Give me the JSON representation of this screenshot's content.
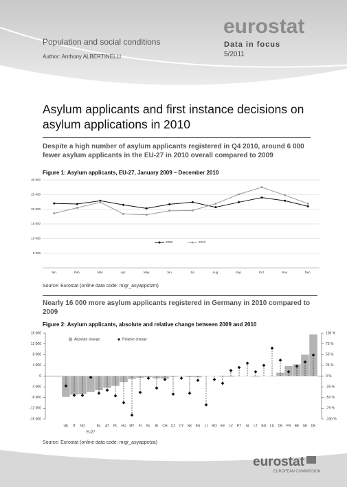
{
  "header": {
    "theme": "Population and social conditions",
    "author": "Author:   Anthony ALBERTINELLI",
    "brand": "eurostat",
    "series": "Data in focus",
    "issue": "5/2011"
  },
  "title": "Asylum applicants and first instance decisions on asylum applications in 2010",
  "subtitle": "Despite a high number of asylum applicants registered in Q4 2010, around 6 000 fewer asylum applicants in the EU-27 in 2010 overall compared to 2009",
  "heading2": "Nearly 16 000 more asylum applicants registered in Germany in 2010 compared to 2009",
  "footer": {
    "brand": "eurostat",
    "org": "EUROPEAN COMMISSION"
  },
  "chart_data": [
    {
      "type": "line",
      "title": "Figure 1: Asylum applicants, EU-27, January 2009 – December 2010",
      "source": "Source: Eurostat (online data code: migr_asyappctzm)",
      "categories": [
        "Jan.",
        "Feb.",
        "Mar.",
        "Apr.",
        "May",
        "Jun.",
        "Jul.",
        "Aug.",
        "Sep.",
        "Oct.",
        "Nov.",
        "Dec."
      ],
      "series": [
        {
          "name": "2009",
          "color": "#111111",
          "values": [
            22000,
            21800,
            22900,
            21500,
            20300,
            21700,
            22400,
            20700,
            22400,
            24000,
            22900,
            21000
          ]
        },
        {
          "name": "2010",
          "color": "#999999",
          "values": [
            18600,
            20500,
            22400,
            18400,
            18100,
            19500,
            19600,
            21900,
            25100,
            27500,
            24800,
            21900
          ]
        }
      ],
      "ylim": [
        0,
        30000
      ],
      "yticks": [
        {
          "value": 5000,
          "label": "5 000"
        },
        {
          "value": 10000,
          "label": "10 000"
        },
        {
          "value": 15000,
          "label": "15 000"
        },
        {
          "value": 20000,
          "label": "20 000"
        },
        {
          "value": 25000,
          "label": "25 000"
        },
        {
          "value": 30000,
          "label": "30 000"
        }
      ],
      "grid": true
    },
    {
      "type": "bar",
      "title": "Figure 2: Asylum applicants, absolute and relative change between 2009 and 2010",
      "source": "Source: Eurostat (online data code: migr_asyappctza)",
      "categories": [
        "UK",
        "IT",
        "NO",
        "EU27",
        "EL",
        "AT",
        "PL",
        "HU",
        "MT",
        "FI",
        "NL",
        "IE",
        "CH",
        "CZ",
        "CY",
        "SK",
        "ES",
        "LI",
        "RO",
        "EE",
        "LV",
        "PT",
        "SI",
        "LT",
        "BG",
        "LU",
        "DK",
        "FR",
        "BE",
        "SE",
        "DE"
      ],
      "series": [
        {
          "name": "Absolute change",
          "color": "#b3b3b3",
          "values": [
            -7800,
            -7000,
            -6800,
            -6000,
            -5300,
            -4400,
            -3700,
            -2300,
            -1100,
            -700,
            -500,
            -900,
            -1000,
            -300,
            -200,
            -400,
            -500,
            -100,
            -100,
            0,
            0,
            100,
            100,
            0,
            100,
            200,
            1300,
            3800,
            4400,
            8000,
            15600
          ]
        },
        {
          "name": "Relative change",
          "color": "#111111",
          "axis": "y2",
          "marker": "diamond",
          "values": [
            -23,
            -45,
            -45,
            -3,
            -40,
            -33,
            -46,
            -62,
            -91,
            -38,
            -5,
            -28,
            -8,
            -42,
            -5,
            -40,
            -10,
            -67,
            -8,
            -17,
            13,
            20,
            30,
            10,
            25,
            65,
            37,
            10,
            23,
            33,
            49
          ]
        }
      ],
      "ylim": [
        -16000,
        16000
      ],
      "yticks": [
        {
          "value": -16000,
          "label": "-16 000"
        },
        {
          "value": -12000,
          "label": "-12 000"
        },
        {
          "value": -8000,
          "label": "-8 000"
        },
        {
          "value": -4000,
          "label": "-4 000"
        },
        0,
        {
          "value": 4000,
          "label": "4 000"
        },
        {
          "value": 8000,
          "label": "8 000"
        },
        {
          "value": 12000,
          "label": "12 000"
        },
        {
          "value": 16000,
          "label": "16 000"
        }
      ],
      "y2lim": [
        -100,
        100
      ],
      "y2ticks": [
        {
          "value": -100,
          "label": "-100 %"
        },
        {
          "value": -75,
          "label": "-75 %"
        },
        {
          "value": -50,
          "label": "-50 %"
        },
        {
          "value": -25,
          "label": "-25 %"
        },
        {
          "value": 0,
          "label": "0 %"
        },
        {
          "value": 25,
          "label": "25 %"
        },
        {
          "value": 50,
          "label": "50 %"
        },
        {
          "value": 75,
          "label": "75 %"
        },
        {
          "value": 100,
          "label": "100 %"
        }
      ]
    }
  ]
}
